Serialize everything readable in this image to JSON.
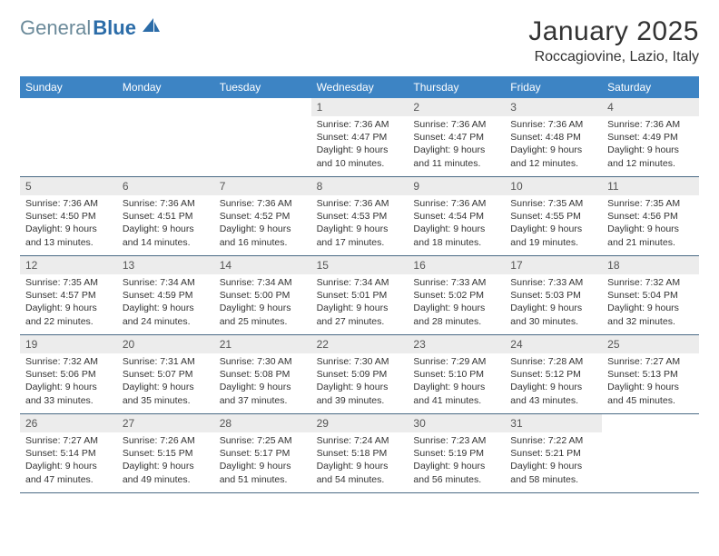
{
  "logo": {
    "part1": "General",
    "part2": "Blue"
  },
  "title": "January 2025",
  "subtitle": "Roccagiovine, Lazio, Italy",
  "colors": {
    "header_bg": "#3d84c4",
    "header_text": "#ffffff",
    "date_bg": "#ececec",
    "border": "#4a6a85"
  },
  "day_names": [
    "Sunday",
    "Monday",
    "Tuesday",
    "Wednesday",
    "Thursday",
    "Friday",
    "Saturday"
  ],
  "weeks": [
    [
      null,
      null,
      null,
      {
        "d": "1",
        "sr": "7:36 AM",
        "ss": "4:47 PM",
        "dl": "9 hours and 10 minutes."
      },
      {
        "d": "2",
        "sr": "7:36 AM",
        "ss": "4:47 PM",
        "dl": "9 hours and 11 minutes."
      },
      {
        "d": "3",
        "sr": "7:36 AM",
        "ss": "4:48 PM",
        "dl": "9 hours and 12 minutes."
      },
      {
        "d": "4",
        "sr": "7:36 AM",
        "ss": "4:49 PM",
        "dl": "9 hours and 12 minutes."
      }
    ],
    [
      {
        "d": "5",
        "sr": "7:36 AM",
        "ss": "4:50 PM",
        "dl": "9 hours and 13 minutes."
      },
      {
        "d": "6",
        "sr": "7:36 AM",
        "ss": "4:51 PM",
        "dl": "9 hours and 14 minutes."
      },
      {
        "d": "7",
        "sr": "7:36 AM",
        "ss": "4:52 PM",
        "dl": "9 hours and 16 minutes."
      },
      {
        "d": "8",
        "sr": "7:36 AM",
        "ss": "4:53 PM",
        "dl": "9 hours and 17 minutes."
      },
      {
        "d": "9",
        "sr": "7:36 AM",
        "ss": "4:54 PM",
        "dl": "9 hours and 18 minutes."
      },
      {
        "d": "10",
        "sr": "7:35 AM",
        "ss": "4:55 PM",
        "dl": "9 hours and 19 minutes."
      },
      {
        "d": "11",
        "sr": "7:35 AM",
        "ss": "4:56 PM",
        "dl": "9 hours and 21 minutes."
      }
    ],
    [
      {
        "d": "12",
        "sr": "7:35 AM",
        "ss": "4:57 PM",
        "dl": "9 hours and 22 minutes."
      },
      {
        "d": "13",
        "sr": "7:34 AM",
        "ss": "4:59 PM",
        "dl": "9 hours and 24 minutes."
      },
      {
        "d": "14",
        "sr": "7:34 AM",
        "ss": "5:00 PM",
        "dl": "9 hours and 25 minutes."
      },
      {
        "d": "15",
        "sr": "7:34 AM",
        "ss": "5:01 PM",
        "dl": "9 hours and 27 minutes."
      },
      {
        "d": "16",
        "sr": "7:33 AM",
        "ss": "5:02 PM",
        "dl": "9 hours and 28 minutes."
      },
      {
        "d": "17",
        "sr": "7:33 AM",
        "ss": "5:03 PM",
        "dl": "9 hours and 30 minutes."
      },
      {
        "d": "18",
        "sr": "7:32 AM",
        "ss": "5:04 PM",
        "dl": "9 hours and 32 minutes."
      }
    ],
    [
      {
        "d": "19",
        "sr": "7:32 AM",
        "ss": "5:06 PM",
        "dl": "9 hours and 33 minutes."
      },
      {
        "d": "20",
        "sr": "7:31 AM",
        "ss": "5:07 PM",
        "dl": "9 hours and 35 minutes."
      },
      {
        "d": "21",
        "sr": "7:30 AM",
        "ss": "5:08 PM",
        "dl": "9 hours and 37 minutes."
      },
      {
        "d": "22",
        "sr": "7:30 AM",
        "ss": "5:09 PM",
        "dl": "9 hours and 39 minutes."
      },
      {
        "d": "23",
        "sr": "7:29 AM",
        "ss": "5:10 PM",
        "dl": "9 hours and 41 minutes."
      },
      {
        "d": "24",
        "sr": "7:28 AM",
        "ss": "5:12 PM",
        "dl": "9 hours and 43 minutes."
      },
      {
        "d": "25",
        "sr": "7:27 AM",
        "ss": "5:13 PM",
        "dl": "9 hours and 45 minutes."
      }
    ],
    [
      {
        "d": "26",
        "sr": "7:27 AM",
        "ss": "5:14 PM",
        "dl": "9 hours and 47 minutes."
      },
      {
        "d": "27",
        "sr": "7:26 AM",
        "ss": "5:15 PM",
        "dl": "9 hours and 49 minutes."
      },
      {
        "d": "28",
        "sr": "7:25 AM",
        "ss": "5:17 PM",
        "dl": "9 hours and 51 minutes."
      },
      {
        "d": "29",
        "sr": "7:24 AM",
        "ss": "5:18 PM",
        "dl": "9 hours and 54 minutes."
      },
      {
        "d": "30",
        "sr": "7:23 AM",
        "ss": "5:19 PM",
        "dl": "9 hours and 56 minutes."
      },
      {
        "d": "31",
        "sr": "7:22 AM",
        "ss": "5:21 PM",
        "dl": "9 hours and 58 minutes."
      },
      null
    ]
  ]
}
